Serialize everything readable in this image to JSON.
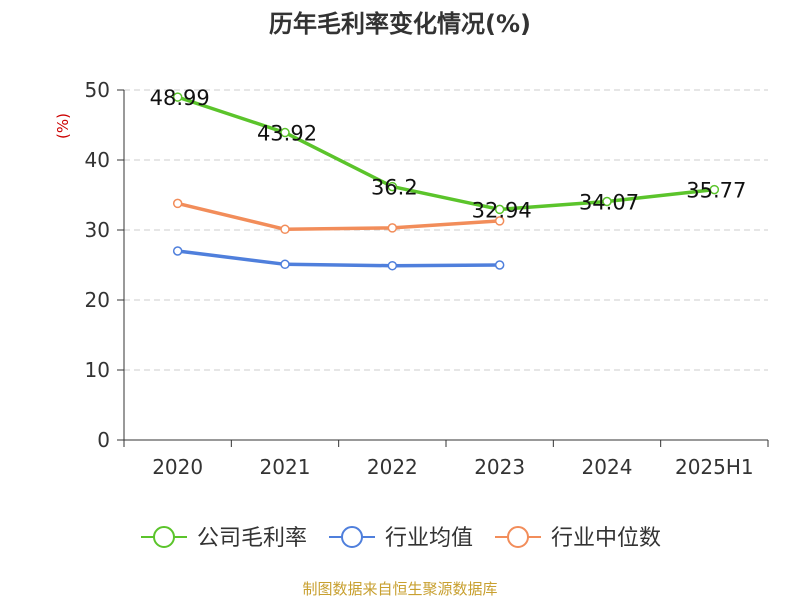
{
  "chart_data": {
    "type": "line",
    "title": "历年毛利率变化情况(%)",
    "ylabel": "(%)",
    "xlabel": "",
    "categories": [
      "2020",
      "2021",
      "2022",
      "2023",
      "2024",
      "2025H1"
    ],
    "ylim": [
      0,
      50
    ],
    "yticks": [
      0,
      10,
      20,
      30,
      40,
      50
    ],
    "grid": true,
    "legend_position": "bottom",
    "series": [
      {
        "name": "公司毛利率",
        "color": "#5bc42b",
        "values": [
          48.99,
          43.92,
          36.2,
          32.94,
          34.07,
          35.77
        ],
        "labels": [
          "48.99",
          "43.92",
          "36.2",
          "32.94",
          "34.07",
          "35.77"
        ]
      },
      {
        "name": "行业均值",
        "color": "#4f7fdc",
        "values": [
          27.0,
          25.1,
          24.9,
          25.0,
          null,
          null
        ]
      },
      {
        "name": "行业中位数",
        "color": "#f28d5a",
        "values": [
          33.8,
          30.1,
          30.3,
          31.3,
          null,
          null
        ]
      }
    ]
  },
  "source_note": "制图数据来自恒生聚源数据库",
  "colors": {
    "title": "#333333",
    "axis": "#333333",
    "grid": "#cccccc",
    "ylabel": "#cc0000",
    "source": "#c8a030"
  }
}
